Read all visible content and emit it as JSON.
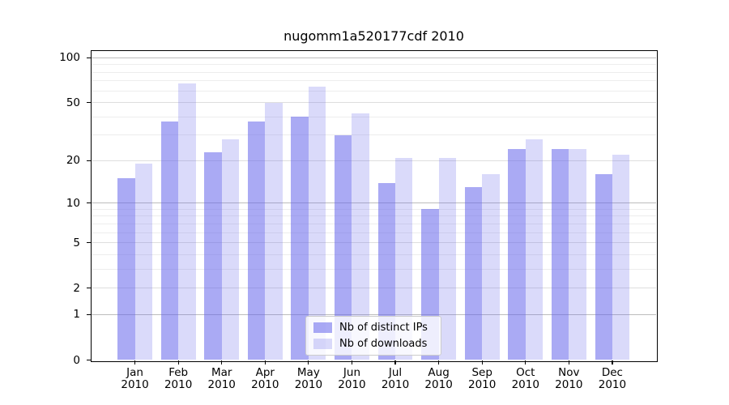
{
  "chart_data": {
    "type": "bar",
    "title": "nugomm1a520177cdf 2010",
    "categories": [
      "Jan",
      "Feb",
      "Mar",
      "Apr",
      "May",
      "Jun",
      "Jul",
      "Aug",
      "Sep",
      "Oct",
      "Nov",
      "Dec"
    ],
    "year_label": "2010",
    "series": [
      {
        "name": "Nb of distinct IPs",
        "color": "rgba(100,100,235,0.55)",
        "values": [
          15,
          37,
          23,
          37,
          40,
          30,
          14,
          9,
          13,
          24,
          24,
          16
        ]
      },
      {
        "name": "Nb of downloads",
        "color": "rgba(100,100,235,0.24)",
        "values": [
          19,
          67,
          28,
          50,
          64,
          42,
          21,
          21,
          16,
          28,
          24,
          22
        ]
      }
    ],
    "xlabel": "",
    "ylabel": "",
    "y_scale": "log1p",
    "ylim": [
      0,
      111
    ],
    "yticks": [
      0,
      1,
      2,
      5,
      10,
      20,
      50,
      100
    ],
    "grid": true,
    "gridlines": {
      "decade": [
        1,
        10,
        100
      ],
      "labeled": [
        2,
        5,
        20,
        50
      ],
      "minor": [
        3,
        4,
        6,
        7,
        8,
        9,
        30,
        40,
        60,
        70,
        80,
        90
      ]
    },
    "legend_position": "lower center",
    "colors": {
      "grid_decade": "#bcbcbc",
      "grid_labeled": "#dedede",
      "grid_minor": "#ededed",
      "axis": "#000000",
      "background": "#ffffff"
    }
  }
}
